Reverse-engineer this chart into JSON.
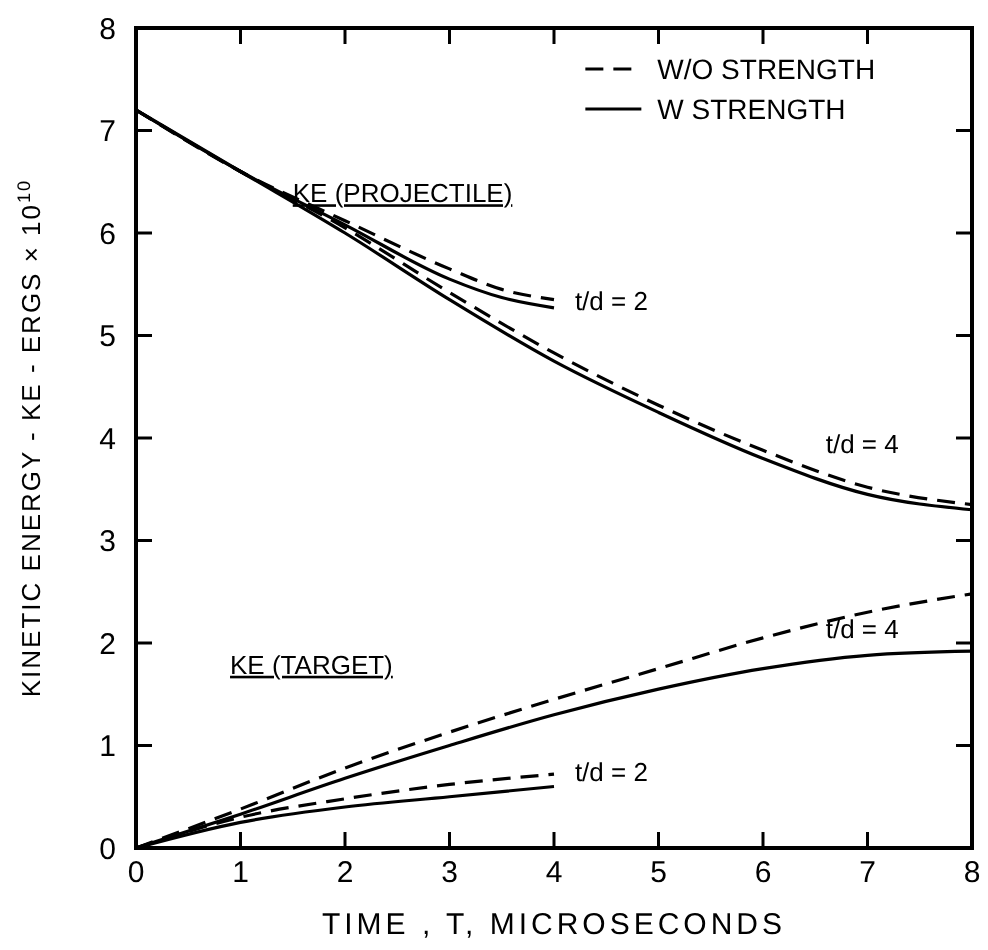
{
  "chart_data": {
    "type": "line",
    "xlabel": "TIME , T, MICROSECONDS",
    "ylabel": "KINETIC  ENERGY - KE - ERGS × 10$^{10}$",
    "xlim": [
      0,
      8
    ],
    "ylim": [
      0,
      8
    ],
    "xticks": [
      0,
      1,
      2,
      3,
      4,
      5,
      6,
      7,
      8
    ],
    "yticks": [
      0,
      1,
      2,
      3,
      4,
      5,
      6,
      7,
      8
    ],
    "grid": false,
    "legend": "top right",
    "marker": "none",
    "series": [
      {
        "name": "W/O STRENGTH",
        "color": "#000000",
        "line_style": "dashed",
        "x": [
          0,
          1,
          2,
          3,
          3.5,
          4
        ],
        "values": [
          7.2,
          6.6,
          6.12,
          5.65,
          5.45,
          5.35
        ]
      },
      {
        "name": "W STRENGTH",
        "color": "#000000",
        "line_style": "solid",
        "x": [
          0,
          1,
          2,
          3,
          3.5,
          4
        ],
        "values": [
          7.2,
          6.6,
          6.08,
          5.55,
          5.37,
          5.27
        ]
      },
      {
        "color": "#000000",
        "line_style": "dashed",
        "x": [
          0,
          1,
          2,
          3,
          4,
          5,
          6,
          7,
          8
        ],
        "values": [
          7.2,
          6.6,
          6.05,
          5.42,
          4.83,
          4.32,
          3.88,
          3.52,
          3.35
        ]
      },
      {
        "color": "#000000",
        "line_style": "solid",
        "x": [
          0,
          1,
          2,
          3,
          4,
          5,
          6,
          7,
          8
        ],
        "values": [
          7.2,
          6.6,
          6.0,
          5.35,
          4.75,
          4.25,
          3.8,
          3.45,
          3.3
        ]
      },
      {
        "color": "#000000",
        "line_style": "dashed",
        "x": [
          0,
          1,
          2,
          3,
          4,
          5,
          6,
          7,
          8
        ],
        "values": [
          0,
          0.38,
          0.78,
          1.13,
          1.45,
          1.75,
          2.05,
          2.3,
          2.48
        ]
      },
      {
        "color": "#000000",
        "line_style": "solid",
        "x": [
          0,
          1,
          2,
          3,
          4,
          5,
          6,
          7,
          8
        ],
        "values": [
          0,
          0.33,
          0.68,
          1.0,
          1.3,
          1.55,
          1.75,
          1.88,
          1.92
        ]
      },
      {
        "color": "#000000",
        "line_style": "dashed",
        "x": [
          0,
          1,
          2,
          3,
          4
        ],
        "values": [
          0,
          0.3,
          0.48,
          0.62,
          0.72
        ]
      },
      {
        "color": "#000000",
        "line_style": "solid",
        "x": [
          0,
          1,
          2,
          3,
          4
        ],
        "values": [
          0,
          0.25,
          0.4,
          0.5,
          0.6
        ]
      }
    ],
    "annotations": [
      "KE (PROJECTILE)",
      "t/d = 2",
      "t/d = 4",
      "KE (TARGET)",
      "t/d = 4",
      "t/d = 2"
    ]
  }
}
